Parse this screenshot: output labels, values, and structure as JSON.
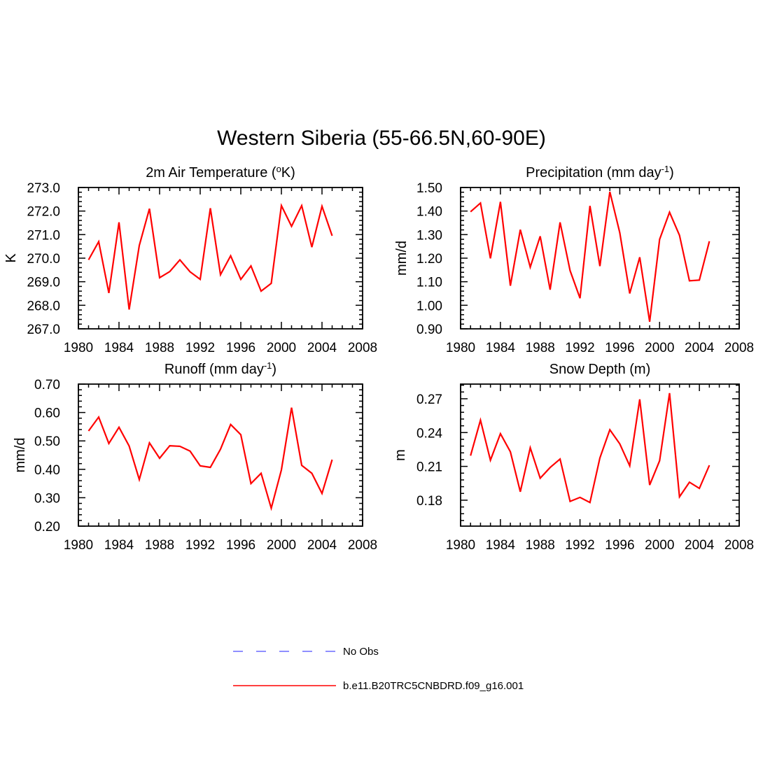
{
  "figure": {
    "title": "Western Siberia (55-66.5N,60-90E)",
    "colors": {
      "model": "#ff0000",
      "obs": "#6a6aff"
    }
  },
  "legend": {
    "entries": [
      {
        "label": "No Obs",
        "style": "dashed",
        "color": "#6a6aff"
      },
      {
        "label": "b.e11.B20TRC5CNBDRD.f09_g16.001",
        "style": "solid",
        "color": "#ff0000"
      }
    ]
  },
  "chart_data": [
    {
      "type": "line",
      "title": "2m Air Temperature (",
      "title_sup": "o",
      "title_after": "K)",
      "ylabel": "K",
      "xlim": [
        1980,
        2008
      ],
      "xticks": [
        "1980",
        "1984",
        "1988",
        "1992",
        "1996",
        "2000",
        "2004",
        "2008"
      ],
      "ylim": [
        267.0,
        273.0
      ],
      "yticks": [
        "267.0",
        "268.0",
        "269.0",
        "270.0",
        "271.0",
        "272.0",
        "273.0"
      ],
      "x": [
        1981,
        1982,
        1983,
        1984,
        1985,
        1986,
        1987,
        1988,
        1989,
        1990,
        1991,
        1992,
        1993,
        1994,
        1995,
        1996,
        1997,
        1998,
        1999,
        2000,
        2001,
        2002,
        2003,
        2004,
        2005
      ],
      "series": [
        {
          "name": "b.e11.B20TRC5CNBDRD.f09_g16.001",
          "values": [
            269.93,
            270.7,
            268.52,
            271.52,
            267.82,
            270.54,
            272.1,
            269.17,
            269.43,
            269.93,
            269.42,
            269.1,
            272.12,
            269.3,
            270.1,
            269.1,
            269.67,
            268.6,
            268.93,
            272.23,
            271.35,
            272.23,
            270.47,
            272.2,
            270.95
          ]
        }
      ]
    },
    {
      "type": "line",
      "title": "Precipitation (mm day",
      "title_sup": "-1",
      "title_after": ")",
      "ylabel": "mm/d",
      "xlim": [
        1980,
        2008
      ],
      "xticks": [
        "1980",
        "1984",
        "1988",
        "1992",
        "1996",
        "2000",
        "2004",
        "2008"
      ],
      "ylim": [
        0.9,
        1.5
      ],
      "yticks": [
        "0.90",
        "1.00",
        "1.10",
        "1.20",
        "1.30",
        "1.40",
        "1.50"
      ],
      "x": [
        1981,
        1982,
        1983,
        1984,
        1985,
        1986,
        1987,
        1988,
        1989,
        1990,
        1991,
        1992,
        1993,
        1994,
        1995,
        1996,
        1997,
        1998,
        1999,
        2000,
        2001,
        2002,
        2003,
        2004,
        2005
      ],
      "series": [
        {
          "name": "b.e11.B20TRC5CNBDRD.f09_g16.001",
          "values": [
            1.397,
            1.434,
            1.199,
            1.439,
            1.083,
            1.321,
            1.162,
            1.293,
            1.066,
            1.352,
            1.147,
            1.03,
            1.422,
            1.166,
            1.482,
            1.308,
            1.05,
            1.204,
            0.93,
            1.28,
            1.395,
            1.297,
            1.104,
            1.107,
            1.272
          ]
        }
      ]
    },
    {
      "type": "line",
      "title": "Runoff (mm day",
      "title_sup": "-1",
      "title_after": ")",
      "ylabel": "mm/d",
      "xlim": [
        1980,
        2008
      ],
      "xticks": [
        "1980",
        "1984",
        "1988",
        "1992",
        "1996",
        "2000",
        "2004",
        "2008"
      ],
      "ylim": [
        0.2,
        0.7
      ],
      "yticks": [
        "0.20",
        "0.30",
        "0.40",
        "0.50",
        "0.60",
        "0.70"
      ],
      "x": [
        1981,
        1982,
        1983,
        1984,
        1985,
        1986,
        1987,
        1988,
        1989,
        1990,
        1991,
        1992,
        1993,
        1994,
        1995,
        1996,
        1997,
        1998,
        1999,
        2000,
        2001,
        2002,
        2003,
        2004,
        2005
      ],
      "series": [
        {
          "name": "b.e11.B20TRC5CNBDRD.f09_g16.001",
          "values": [
            0.535,
            0.584,
            0.491,
            0.548,
            0.482,
            0.364,
            0.493,
            0.439,
            0.483,
            0.481,
            0.464,
            0.412,
            0.407,
            0.471,
            0.558,
            0.522,
            0.35,
            0.386,
            0.263,
            0.398,
            0.617,
            0.414,
            0.386,
            0.315,
            0.434
          ]
        }
      ]
    },
    {
      "type": "line",
      "title": "Snow Depth (m)",
      "title_sup": "",
      "title_after": "",
      "ylabel": "m",
      "xlim": [
        1980,
        2008
      ],
      "xticks": [
        "1980",
        "1984",
        "1988",
        "1992",
        "1996",
        "2000",
        "2004",
        "2008"
      ],
      "ylim": [
        0.157,
        0.283
      ],
      "yticks": [
        "0.18",
        "0.21",
        "0.24",
        "0.27"
      ],
      "ytick_values": [
        0.18,
        0.21,
        0.24,
        0.27
      ],
      "x": [
        1981,
        1982,
        1983,
        1984,
        1985,
        1986,
        1987,
        1988,
        1989,
        1990,
        1991,
        1992,
        1993,
        1994,
        1995,
        1996,
        1997,
        1998,
        1999,
        2000,
        2001,
        2002,
        2003,
        2004,
        2005
      ],
      "series": [
        {
          "name": "b.e11.B20TRC5CNBDRD.f09_g16.001",
          "values": [
            0.2195,
            0.251,
            0.2155,
            0.239,
            0.223,
            0.1875,
            0.2265,
            0.1995,
            0.209,
            0.2165,
            0.179,
            0.1825,
            0.178,
            0.2175,
            0.2425,
            0.23,
            0.2105,
            0.2695,
            0.1935,
            0.215,
            0.275,
            0.183,
            0.196,
            0.1905,
            0.211
          ]
        }
      ]
    }
  ]
}
